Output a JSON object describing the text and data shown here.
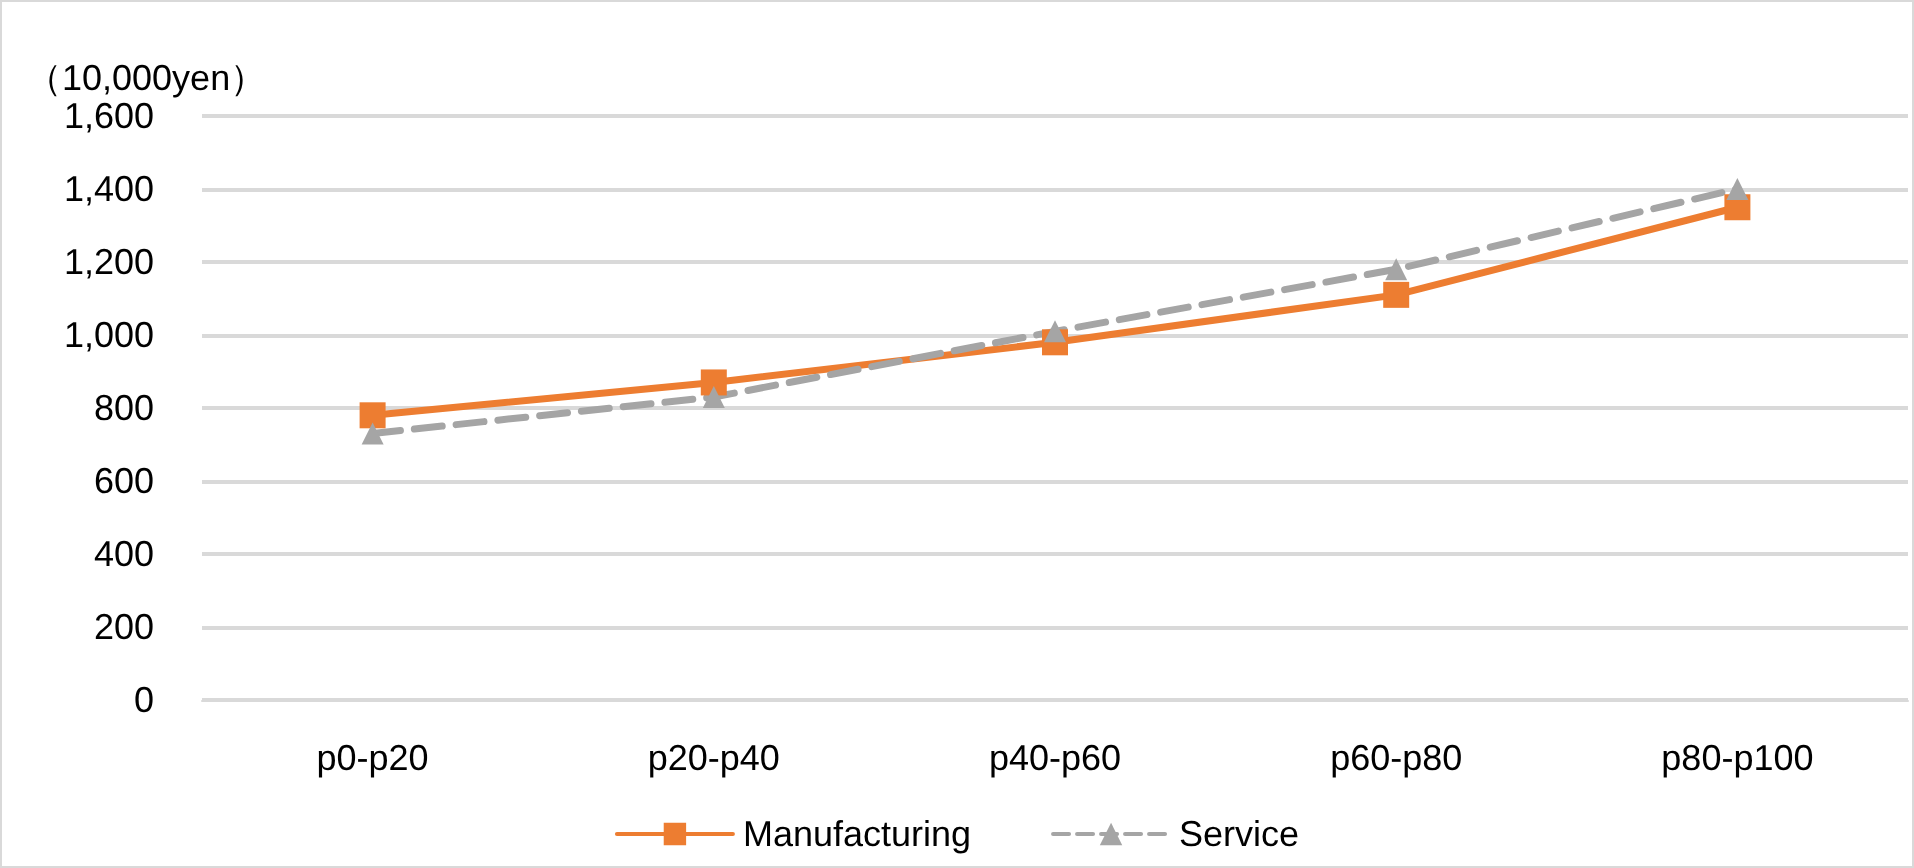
{
  "chart_data": {
    "type": "line",
    "ylabel": "（10,000yen）",
    "categories": [
      "p0-p20",
      "p20-p40",
      "p40-p60",
      "p60-p80",
      "p80-p100"
    ],
    "series": [
      {
        "name": "Manufacturing",
        "color": "#ed7d31",
        "marker": "square",
        "line_style": "solid",
        "values": [
          780,
          870,
          980,
          1110,
          1350
        ]
      },
      {
        "name": "Service",
        "color": "#a5a5a5",
        "marker": "triangle",
        "line_style": "dashed",
        "values": [
          730,
          830,
          1010,
          1180,
          1400
        ]
      }
    ],
    "ylim": [
      0,
      1600
    ],
    "yticks": [
      0,
      200,
      400,
      600,
      800,
      {
        "value": 1000,
        "label": "1,000"
      },
      {
        "value": 1200,
        "label": "1,200"
      },
      {
        "value": 1400,
        "label": "1,400"
      },
      {
        "value": 1600,
        "label": "1,600"
      }
    ],
    "grid": "y",
    "legend": "bottom"
  }
}
